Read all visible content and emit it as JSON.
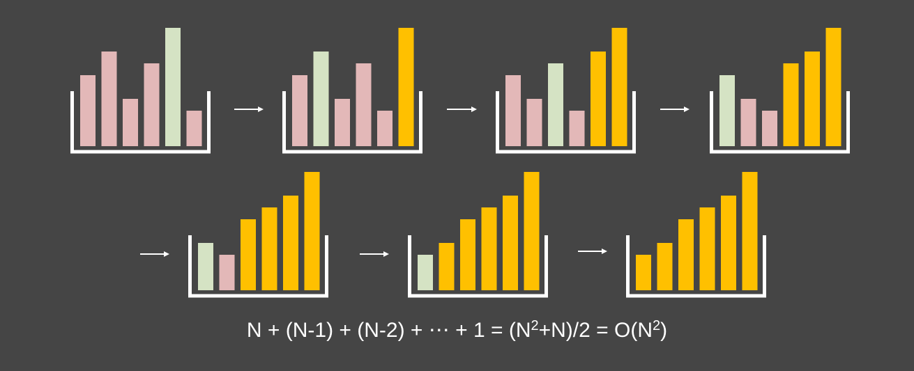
{
  "diagram": {
    "colors": {
      "background": "#454545",
      "unsorted": "#e3b8b8",
      "current_max": "#d5e3c4",
      "sorted": "#ffc000",
      "outline": "#ffffff"
    },
    "arrow_icon": "right-arrow-icon",
    "steps": [
      {
        "values": [
          6,
          8,
          4,
          7,
          10,
          3
        ],
        "states": [
          "unsorted",
          "unsorted",
          "unsorted",
          "unsorted",
          "current_max",
          "unsorted"
        ]
      },
      {
        "values": [
          6,
          8,
          4,
          7,
          3,
          10
        ],
        "states": [
          "unsorted",
          "current_max",
          "unsorted",
          "unsorted",
          "unsorted",
          "sorted"
        ]
      },
      {
        "values": [
          6,
          4,
          7,
          3,
          8,
          10
        ],
        "states": [
          "unsorted",
          "unsorted",
          "current_max",
          "unsorted",
          "sorted",
          "sorted"
        ]
      },
      {
        "values": [
          6,
          4,
          3,
          7,
          8,
          10
        ],
        "states": [
          "current_max",
          "unsorted",
          "unsorted",
          "sorted",
          "sorted",
          "sorted"
        ]
      },
      {
        "values": [
          4,
          3,
          6,
          7,
          8,
          10
        ],
        "states": [
          "current_max",
          "unsorted",
          "sorted",
          "sorted",
          "sorted",
          "sorted"
        ]
      },
      {
        "values": [
          3,
          4,
          6,
          7,
          8,
          10
        ],
        "states": [
          "current_max",
          "sorted",
          "sorted",
          "sorted",
          "sorted",
          "sorted"
        ]
      },
      {
        "values": [
          3,
          4,
          6,
          7,
          8,
          10
        ],
        "states": [
          "sorted",
          "sorted",
          "sorted",
          "sorted",
          "sorted",
          "sorted"
        ]
      }
    ],
    "formula": {
      "part1": "N + (N-1) + (N-2) + ⋯ + 1 = (N",
      "sup1": "2",
      "part2": "+N)/2 = O(N",
      "sup2": "2",
      "part3": ")"
    }
  }
}
